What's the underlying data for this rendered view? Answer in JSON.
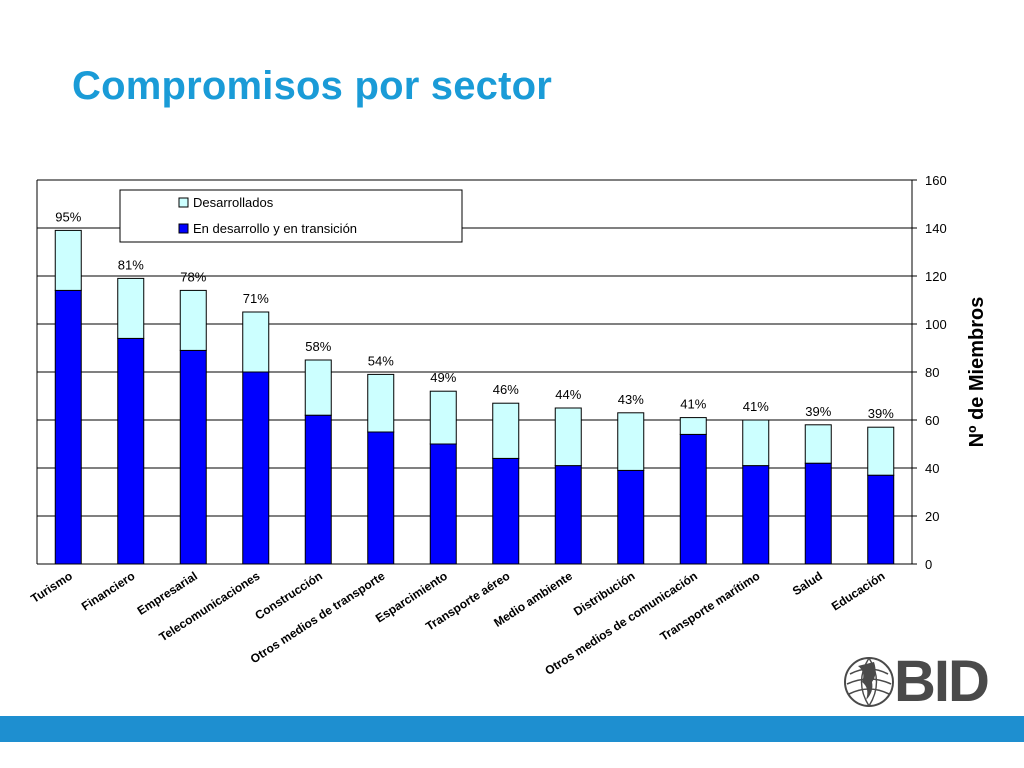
{
  "title": "Compromisos por sector",
  "logo": {
    "text": "BID",
    "icon": "globe-icon"
  },
  "colors": {
    "title": "#1a9bd7",
    "developed_fill": "#ccffff",
    "developing_fill": "#0000ff",
    "bar_stroke": "#000000",
    "footer_bar": "#1e8fd0"
  },
  "chart_data": {
    "type": "bar",
    "stacked": true,
    "categories": [
      "Turismo",
      "Financiero",
      "Empresarial",
      "Telecomunicaciones",
      "Construcción",
      "Otros medios  de transporte",
      "Esparcimiento",
      "Transporte aéreo",
      "Medio ambiente",
      "Distribución",
      "Otros medios de comunicación",
      "Transporte marítimo",
      "Salud",
      "Educación"
    ],
    "series": [
      {
        "name": "En desarrollo y en transición",
        "values": [
          114,
          94,
          89,
          80,
          62,
          55,
          50,
          44,
          41,
          39,
          54,
          41,
          42,
          37
        ]
      },
      {
        "name": "Desarrollados",
        "values": [
          25,
          25,
          25,
          25,
          23,
          24,
          22,
          23,
          24,
          24,
          7,
          19,
          16,
          20
        ]
      }
    ],
    "totals": [
      139,
      119,
      114,
      105,
      85,
      79,
      72,
      67,
      65,
      63,
      61,
      60,
      58,
      57
    ],
    "data_labels": [
      "95%",
      "81%",
      "78%",
      "71%",
      "58%",
      "54%",
      "49%",
      "46%",
      "44%",
      "43%",
      "41%",
      "41%",
      "39%",
      "39%"
    ],
    "ylabel": "Nº de Miembros",
    "ylim": [
      0,
      160
    ],
    "yticks": [
      0,
      20,
      40,
      60,
      80,
      100,
      120,
      140,
      160
    ],
    "y_axis_side": "right",
    "grid": true,
    "legend_position": "top-left"
  }
}
